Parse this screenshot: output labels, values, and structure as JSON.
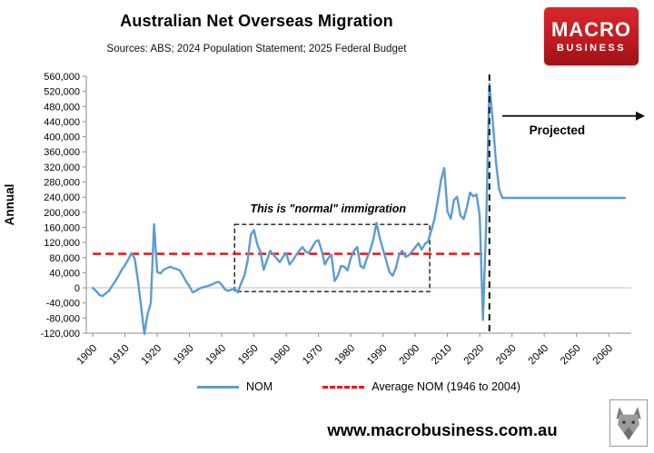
{
  "header": {
    "title": "Australian Net Overseas Migration",
    "subtitle": "Sources: ABS; 2024 Population Statement; 2025 Federal Budget"
  },
  "logo": {
    "line1": "MACRO",
    "line2": "BUSINESS",
    "background": "#C11A20"
  },
  "footer": {
    "url": "www.macrobusiness.com.au"
  },
  "chart_data": {
    "type": "line",
    "title": "Australian Net Overseas Migration",
    "xlabel": "",
    "ylabel": "Annual",
    "ylim": [
      -120000,
      560000
    ],
    "ytick_step": 40000,
    "xlim": [
      1898,
      2067
    ],
    "xticks": [
      1900,
      1910,
      1920,
      1930,
      1940,
      1950,
      1960,
      1970,
      1980,
      1990,
      2000,
      2010,
      2020,
      2030,
      2040,
      2050,
      2060
    ],
    "grid": "zero-line-only",
    "legend_position": "bottom",
    "series": [
      {
        "name": "NOM",
        "color": "#5B9BD5",
        "start_year": 1900,
        "end_year": 2065,
        "values": [
          0,
          -8000,
          -18000,
          -22000,
          -15000,
          -8000,
          5000,
          18000,
          32000,
          48000,
          60000,
          75000,
          92000,
          78000,
          20000,
          -50000,
          -122000,
          -70000,
          -40000,
          168000,
          42000,
          38000,
          48000,
          52000,
          56000,
          52000,
          50000,
          46000,
          32000,
          16000,
          4000,
          -12000,
          -8000,
          -2000,
          1000,
          3000,
          6000,
          9000,
          13000,
          16000,
          8000,
          -4000,
          -8000,
          -5000,
          -2000,
          -12000,
          12000,
          32000,
          70000,
          140000,
          153000,
          115000,
          95000,
          48000,
          72000,
          98000,
          88000,
          78000,
          68000,
          82000,
          92000,
          62000,
          72000,
          86000,
          98000,
          108000,
          96000,
          92000,
          106000,
          122000,
          126000,
          98000,
          62000,
          78000,
          88000,
          18000,
          32000,
          58000,
          56000,
          46000,
          78000,
          98000,
          108000,
          58000,
          52000,
          78000,
          98000,
          128000,
          172000,
          132000,
          102000,
          72000,
          42000,
          32000,
          52000,
          88000,
          98000,
          82000,
          86000,
          96000,
          107000,
          118000,
          101000,
          116000,
          123000,
          152000,
          183000,
          232000,
          285000,
          317000,
          202000,
          183000,
          232000,
          241000,
          192000,
          182000,
          212000,
          252000,
          242000,
          247000,
          192000,
          -85000,
          170000,
          540000,
          448000,
          336000,
          262000,
          238000,
          238000,
          238000,
          238000,
          238000,
          238000,
          238000,
          238000,
          238000,
          238000,
          238000,
          238000,
          238000,
          238000,
          238000,
          238000,
          238000,
          238000,
          238000,
          238000,
          238000,
          238000,
          238000,
          238000,
          238000,
          238000,
          238000,
          238000,
          238000,
          238000,
          238000,
          238000,
          238000,
          238000,
          238000,
          238000,
          238000,
          238000,
          238000
        ]
      }
    ],
    "average_line": {
      "label": "Average NOM (1946 to 2004)",
      "value": 90000,
      "x_start": 1900,
      "x_end": 2021,
      "color": "#FF0000",
      "style": "dashed"
    },
    "normal_box": {
      "label": "This is \"normal\" immigration",
      "x1": 1944,
      "x2": 2004.5,
      "y1": -10000,
      "y2": 168000,
      "label_x": 1973,
      "label_y": 200000
    },
    "projection": {
      "label": "Projected",
      "divider_year": 2023,
      "arrow_x_start": 2027,
      "arrow_y": 455000,
      "label_x": 2044,
      "label_y": 406000,
      "color": "#111111"
    }
  }
}
